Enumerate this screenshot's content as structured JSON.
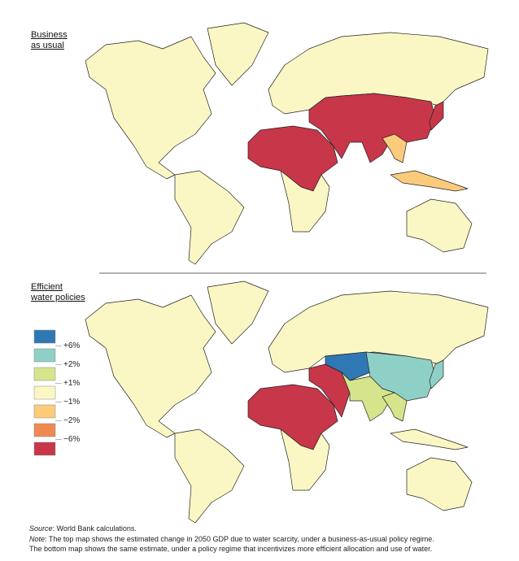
{
  "maps": [
    {
      "title": [
        "Business",
        "as usual"
      ]
    },
    {
      "title": [
        "Efficient",
        "water policies"
      ]
    }
  ],
  "legend": {
    "colors": [
      "#2f78b3",
      "#8fd0c6",
      "#d6e48c",
      "#fbf7c4",
      "#fbcb7c",
      "#ee8a50",
      "#c73649"
    ],
    "labels": [
      "+6%",
      "+2%",
      "+1%",
      "−1%",
      "−2%",
      "−6%"
    ]
  },
  "footer": {
    "source": {
      "label": "Source",
      "text": ": World Bank calculations."
    },
    "note": {
      "label": "Note",
      "lines": [
        ": The top map shows the estimated change in 2050 GDP due to water scarcity, under a business-as-usual policy regime.",
        "The bottom map shows the same estimate, under a policy regime that incentivizes more efficient allocation and use of water."
      ]
    }
  }
}
